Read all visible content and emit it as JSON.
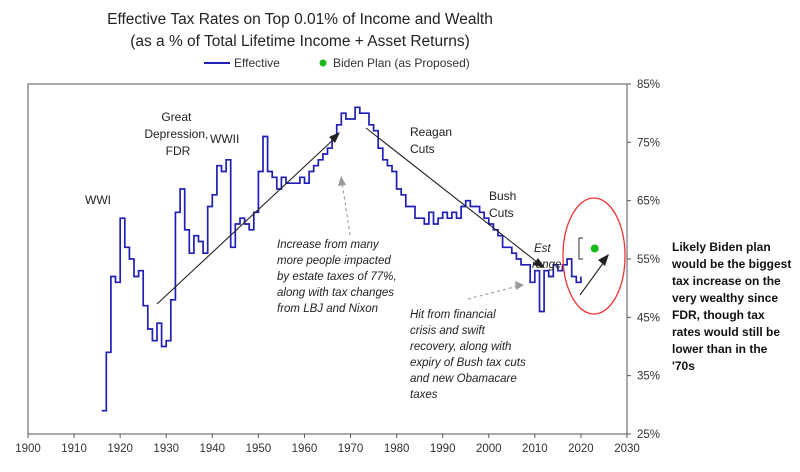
{
  "chart_data": {
    "type": "line",
    "title": "Effective Tax Rates on Top 0.01% of Income and Wealth",
    "subtitle": "(as a % of Total Lifetime Income + Asset Returns)",
    "legend": [
      {
        "label": "Effective",
        "style": "line",
        "color": "#1f1fb5"
      },
      {
        "label": "Biden Plan (as Proposed)",
        "style": "dot",
        "color": "#18b818"
      }
    ],
    "xlim": [
      1900,
      2030
    ],
    "ylim": [
      25,
      85
    ],
    "x_ticks": [
      "1900",
      "1910",
      "1920",
      "1930",
      "1940",
      "1950",
      "1960",
      "1970",
      "1980",
      "1990",
      "2000",
      "2010",
      "2020",
      "2030"
    ],
    "y_ticks": [
      "25%",
      "35%",
      "45%",
      "55%",
      "65%",
      "75%",
      "85%"
    ],
    "y_tick_values": [
      25,
      35,
      45,
      55,
      65,
      75,
      85
    ],
    "x_tick_values": [
      1900,
      1910,
      1920,
      1930,
      1940,
      1950,
      1960,
      1970,
      1980,
      1990,
      2000,
      2010,
      2020,
      2030
    ],
    "series": [
      {
        "name": "Effective",
        "x": [
          1916,
          1917,
          1918,
          1919,
          1920,
          1921,
          1922,
          1923,
          1924,
          1925,
          1926,
          1927,
          1928,
          1929,
          1930,
          1931,
          1932,
          1933,
          1934,
          1935,
          1936,
          1937,
          1938,
          1939,
          1940,
          1941,
          1942,
          1943,
          1944,
          1945,
          1946,
          1947,
          1948,
          1949,
          1950,
          1951,
          1952,
          1953,
          1954,
          1955,
          1956,
          1957,
          1958,
          1959,
          1960,
          1961,
          1962,
          1963,
          1964,
          1965,
          1966,
          1967,
          1968,
          1969,
          1970,
          1971,
          1972,
          1973,
          1974,
          1975,
          1976,
          1977,
          1978,
          1979,
          1980,
          1981,
          1982,
          1983,
          1984,
          1985,
          1986,
          1987,
          1988,
          1989,
          1990,
          1991,
          1992,
          1993,
          1994,
          1995,
          1996,
          1997,
          1998,
          1999,
          2000,
          2001,
          2002,
          2003,
          2004,
          2005,
          2006,
          2007,
          2008,
          2009,
          2010,
          2011,
          2012,
          2013,
          2014,
          2015,
          2016,
          2017,
          2018,
          2019,
          2020
        ],
        "y": [
          29,
          39,
          52,
          51,
          62,
          57,
          55,
          52,
          53,
          47,
          43,
          41,
          44,
          40,
          41,
          48,
          63,
          67,
          60,
          56,
          59,
          58,
          56,
          64,
          66,
          71,
          70,
          72,
          57,
          61,
          62,
          61,
          60,
          63,
          70,
          76,
          70,
          69,
          67,
          69,
          68,
          68,
          68,
          69,
          68,
          70,
          71,
          72,
          73,
          74,
          76,
          78,
          80,
          79,
          79,
          81,
          80,
          80,
          78,
          77,
          74,
          72,
          71,
          70,
          67,
          66,
          64,
          64,
          62,
          62,
          61,
          63,
          61,
          62,
          63,
          62,
          63,
          62,
          64,
          65,
          64,
          64,
          63,
          62,
          61,
          60,
          59,
          57,
          57,
          56,
          55,
          54,
          54,
          51,
          53,
          46,
          53,
          52,
          54,
          53,
          54,
          55,
          52,
          51,
          52
        ]
      },
      {
        "name": "Biden Plan (as Proposed)",
        "x": [
          2023
        ],
        "y": [
          56.8
        ],
        "range": [
          54.5,
          59
        ]
      }
    ],
    "annotations": [
      {
        "text": "WWI"
      },
      {
        "lines": [
          "Great",
          "Depression,",
          "FDR"
        ]
      },
      {
        "text": "WWII"
      },
      {
        "lines": [
          "Reagan",
          "Cuts"
        ]
      },
      {
        "lines": [
          "Bush",
          "Cuts"
        ]
      },
      {
        "lines": [
          "Est",
          "range"
        ]
      },
      {
        "lines": [
          "Increase from many",
          "more people impacted",
          "by estate taxes of 77%,",
          "along with tax changes",
          "from LBJ and Nixon"
        ]
      },
      {
        "lines": [
          "Hit from financial",
          "crisis and swift",
          "recovery, along with",
          "expiry of Bush tax cuts",
          "and new Obamacare",
          "taxes"
        ]
      }
    ],
    "side_note": [
      "Likely Biden plan",
      "would be the biggest",
      "tax increase on the",
      "very wealthy since",
      "FDR, though tax",
      "rates would still be",
      "lower than in the",
      "'70s"
    ]
  }
}
